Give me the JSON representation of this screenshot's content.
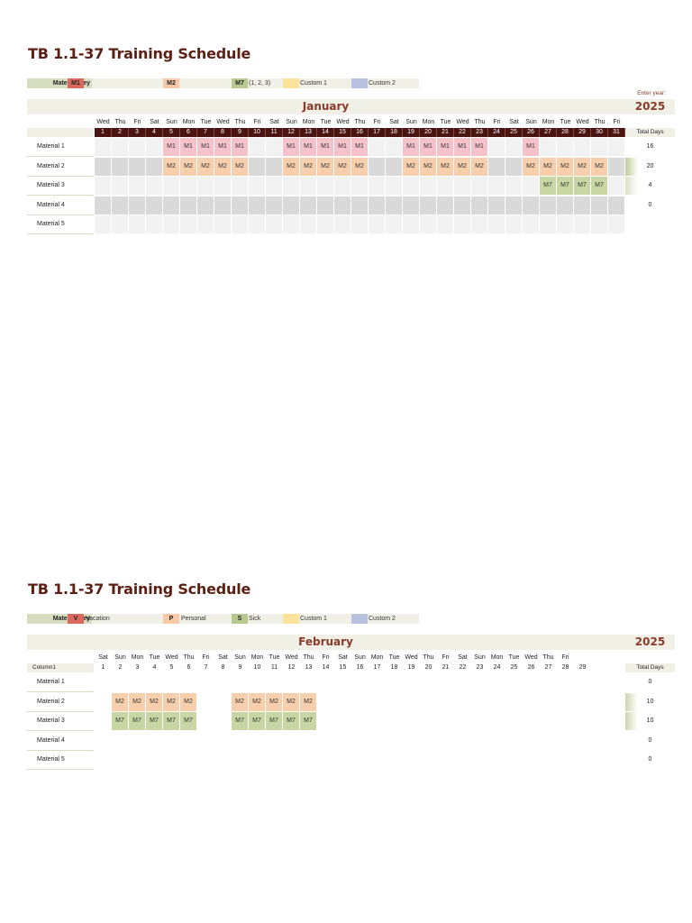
{
  "sections": [
    {
      "title": "TB 1.1-37 Training Schedule",
      "key_label": "Material Key",
      "key_items": [
        {
          "code": "M1",
          "color": "#d9695c",
          "text": ""
        },
        {
          "code": "M2",
          "color": "#f7c9a6",
          "text": ""
        },
        {
          "code": "M7",
          "color": "#b7c98f",
          "text": "(1, 2, 3)"
        },
        {
          "code": "",
          "color": "#fbe39b",
          "text": "Custom 1"
        },
        {
          "code": "",
          "color": "#b8c2e0",
          "text": "Custom 2"
        }
      ],
      "enter_year_label": "Enter year:",
      "month": "January",
      "year": "2025",
      "column_label": "",
      "total_label": "Total Days",
      "dark_day_numbers": true,
      "day_of_week": [
        "Wed",
        "Thu",
        "Fri",
        "Sat",
        "Sun",
        "Mon",
        "Tue",
        "Wed",
        "Thu",
        "Fri",
        "Sat",
        "Sun",
        "Mon",
        "Tue",
        "Wed",
        "Thu",
        "Fri",
        "Sat",
        "Sun",
        "Mon",
        "Tue",
        "Wed",
        "Thu",
        "Fri",
        "Sat",
        "Sun",
        "Mon",
        "Tue",
        "Wed",
        "Thu",
        "Fri"
      ],
      "days": [
        "1",
        "2",
        "3",
        "4",
        "5",
        "6",
        "7",
        "8",
        "9",
        "10",
        "11",
        "12",
        "13",
        "14",
        "15",
        "16",
        "17",
        "18",
        "19",
        "20",
        "21",
        "22",
        "23",
        "24",
        "25",
        "26",
        "27",
        "28",
        "29",
        "30",
        "31"
      ],
      "shade_empty": true,
      "rows": [
        {
          "name": "Material 1",
          "total": "16",
          "cells": [
            "",
            "",
            "",
            "",
            "M1",
            "M1",
            "M1",
            "M1",
            "M1",
            "",
            "",
            "M1",
            "M1",
            "M1",
            "M1",
            "M1",
            "",
            "",
            "M1",
            "M1",
            "M1",
            "M1",
            "M1",
            "",
            "",
            "M1",
            "",
            "",
            "",
            "",
            ""
          ]
        },
        {
          "name": "Material 2",
          "total": "20",
          "cells": [
            "",
            "",
            "",
            "",
            "M2",
            "M2",
            "M2",
            "M2",
            "M2",
            "",
            "",
            "M2",
            "M2",
            "M2",
            "M2",
            "M2",
            "",
            "",
            "M2",
            "M2",
            "M2",
            "M2",
            "M2",
            "",
            "",
            "M2",
            "M2",
            "M2",
            "M2",
            "M2",
            ""
          ]
        },
        {
          "name": "Material 3",
          "total": "4",
          "cells": [
            "",
            "",
            "",
            "",
            "",
            "",
            "",
            "",
            "",
            "",
            "",
            "",
            "",
            "",
            "",
            "",
            "",
            "",
            "",
            "",
            "",
            "",
            "",
            "",
            "",
            "",
            "M7",
            "M7",
            "M7",
            "M7",
            ""
          ]
        },
        {
          "name": "Material 4",
          "total": "0",
          "cells": [
            "",
            "",
            "",
            "",
            "",
            "",
            "",
            "",
            "",
            "",
            "",
            "",
            "",
            "",
            "",
            "",
            "",
            "",
            "",
            "",
            "",
            "",
            "",
            "",
            "",
            "",
            "",
            "",
            "",
            "",
            ""
          ]
        },
        {
          "name": "Material 5",
          "total": "",
          "cells": [
            "",
            "",
            "",
            "",
            "",
            "",
            "",
            "",
            "",
            "",
            "",
            "",
            "",
            "",
            "",
            "",
            "",
            "",
            "",
            "",
            "",
            "",
            "",
            "",
            "",
            "",
            "",
            "",
            "",
            "",
            ""
          ]
        }
      ],
      "bar_levels": [
        0,
        0.8,
        0.2,
        0,
        0
      ]
    },
    {
      "title": "TB 1.1-37 Training Schedule",
      "key_label": "Material Key",
      "key_items": [
        {
          "code": "V",
          "color": "#d9695c",
          "text": "Vacation"
        },
        {
          "code": "P",
          "color": "#f7c9a6",
          "text": "Personal"
        },
        {
          "code": "S",
          "color": "#b7c98f",
          "text": "Sick"
        },
        {
          "code": "",
          "color": "#fbe39b",
          "text": "Custom 1"
        },
        {
          "code": "",
          "color": "#b8c2e0",
          "text": "Custom 2"
        }
      ],
      "enter_year_label": "",
      "month": "February",
      "year": "2025",
      "column_label": "Column1",
      "total_label": "Total Days",
      "dark_day_numbers": false,
      "day_of_week": [
        "Sat",
        "Sun",
        "Mon",
        "Tue",
        "Wed",
        "Thu",
        "Fri",
        "Sat",
        "Sun",
        "Mon",
        "Tue",
        "Wed",
        "Thu",
        "Fri",
        "Sat",
        "Sun",
        "Mon",
        "Tue",
        "Wed",
        "Thu",
        "Fri",
        "Sat",
        "Sun",
        "Mon",
        "Tue",
        "Wed",
        "Thu",
        "Fri",
        ""
      ],
      "days": [
        "1",
        "2",
        "3",
        "4",
        "5",
        "6",
        "7",
        "8",
        "9",
        "10",
        "11",
        "12",
        "13",
        "14",
        "15",
        "16",
        "17",
        "18",
        "19",
        "20",
        "21",
        "22",
        "23",
        "24",
        "25",
        "26",
        "27",
        "28",
        "29"
      ],
      "shade_empty": false,
      "rows": [
        {
          "name": "Material 1",
          "total": "0",
          "cells": [
            "",
            "",
            "",
            "",
            "",
            "",
            "",
            "",
            "",
            "",
            "",
            "",
            "",
            "",
            "",
            "",
            "",
            "",
            "",
            "",
            "",
            "",
            "",
            "",
            "",
            "",
            "",
            "",
            ""
          ]
        },
        {
          "name": "Material 2",
          "total": "10",
          "cells": [
            "",
            "M2",
            "M2",
            "M2",
            "M2",
            "M2",
            "",
            "",
            "M2",
            "M2",
            "M2",
            "M2",
            "M2",
            "",
            "",
            "",
            "",
            "",
            "",
            "",
            "",
            "",
            "",
            "",
            "",
            "",
            "",
            "",
            ""
          ]
        },
        {
          "name": "Material 3",
          "total": "10",
          "cells": [
            "",
            "M7",
            "M7",
            "M7",
            "M7",
            "M7",
            "",
            "",
            "M7",
            "M7",
            "M7",
            "M7",
            "M7",
            "",
            "",
            "",
            "",
            "",
            "",
            "",
            "",
            "",
            "",
            "",
            "",
            "",
            "",
            "",
            ""
          ]
        },
        {
          "name": "Material 4",
          "total": "0",
          "cells": [
            "",
            "",
            "",
            "",
            "",
            "",
            "",
            "",
            "",
            "",
            "",
            "",
            "",
            "",
            "",
            "",
            "",
            "",
            "",
            "",
            "",
            "",
            "",
            "",
            "",
            "",
            "",
            "",
            ""
          ]
        },
        {
          "name": "Material 5",
          "total": "0",
          "cells": [
            "",
            "",
            "",
            "",
            "",
            "",
            "",
            "",
            "",
            "",
            "",
            "",
            "",
            "",
            "",
            "",
            "",
            "",
            "",
            "",
            "",
            "",
            "",
            "",
            "",
            "",
            "",
            "",
            ""
          ]
        }
      ],
      "bar_levels": [
        0,
        0.5,
        0.5,
        0,
        0
      ]
    }
  ]
}
